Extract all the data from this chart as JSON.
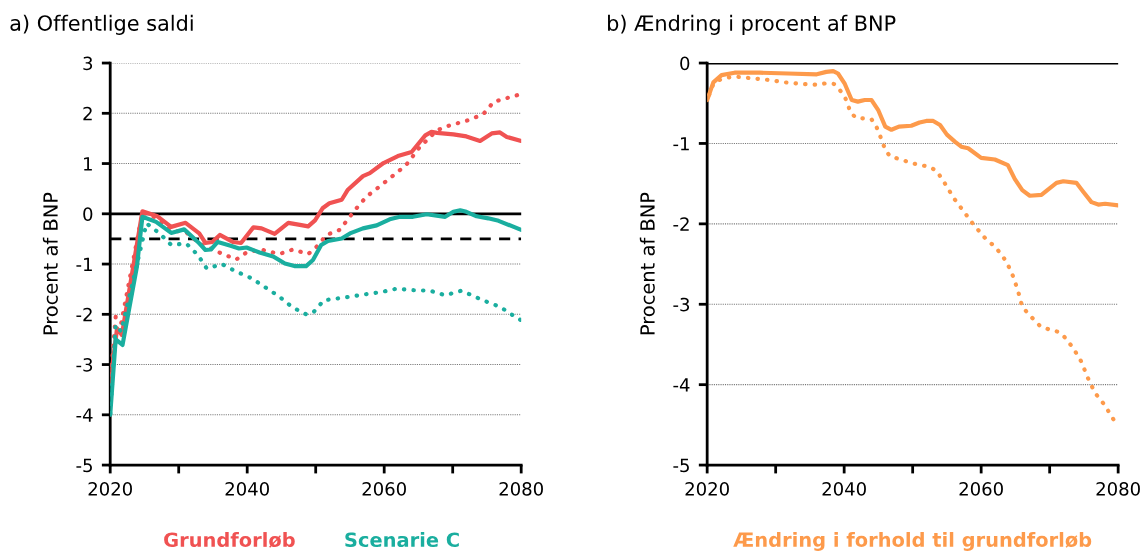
{
  "chart_data": [
    {
      "type": "line",
      "title": "a) Offentlige saldi",
      "ylabel": "Procent af BNP",
      "xlim": [
        2020,
        2080
      ],
      "ylim": [
        -5,
        3
      ],
      "xticks": [
        2020,
        {
          "value": 2030,
          "label": null
        },
        2040,
        {
          "value": 2050,
          "label": null
        },
        2060,
        {
          "value": 2070,
          "label": null
        },
        2080
      ],
      "yticks": [
        -5,
        -4,
        -3,
        -2,
        -1,
        0,
        1,
        2,
        3
      ],
      "grid": "y",
      "legend": "bottom",
      "ref_lines": [
        {
          "axis": "y",
          "value": 0,
          "color": "#000000",
          "line_style": "solid"
        },
        {
          "axis": "y",
          "value": -0.5,
          "color": "#000000",
          "line_style": "dashed"
        }
      ],
      "series": [
        {
          "name": "Grundforløb",
          "color": "#f05252",
          "line_style": "solid",
          "x": [
            2020,
            2021,
            2021.7,
            2024.7,
            2026.9,
            2028.9,
            2031,
            2033,
            2033.9,
            2034.9,
            2036,
            2037.9,
            2039.1,
            2040.9,
            2042.1,
            2044,
            2046,
            2047.7,
            2048.9,
            2049.9,
            2051,
            2052,
            2053.8,
            2054.7,
            2056.9,
            2057.9,
            2059.9,
            2062,
            2064,
            2066,
            2066.9,
            2067.7,
            2070.1,
            2072,
            2074,
            2075.7,
            2076.9,
            2077.9,
            2080
          ],
          "values": [
            -3.37,
            -2.28,
            -2.41,
            0.05,
            -0.05,
            -0.26,
            -0.18,
            -0.39,
            -0.58,
            -0.56,
            -0.42,
            -0.56,
            -0.58,
            -0.27,
            -0.29,
            -0.4,
            -0.18,
            -0.22,
            -0.25,
            -0.13,
            0.11,
            0.21,
            0.28,
            0.48,
            0.75,
            0.81,
            1.01,
            1.15,
            1.23,
            1.56,
            1.63,
            1.61,
            1.58,
            1.54,
            1.45,
            1.6,
            1.62,
            1.53,
            1.45
          ]
        },
        {
          "color": "#f05252",
          "line_style": "dotted",
          "x": [
            2020,
            2020.8,
            2021.6,
            2024.7,
            2026.9,
            2028.9,
            2031.2,
            2033,
            2035.4,
            2038.4,
            2040.1,
            2042.3,
            2044.7,
            2046.7,
            2048.9,
            2049.9,
            2051.6,
            2053.5,
            2055.7,
            2057.4,
            2059.3,
            2061.2,
            2063.2,
            2065.2,
            2067.7,
            2069.1,
            2072.5,
            2074.5,
            2076,
            2078.1,
            2079.4
          ],
          "values": [
            -3.37,
            -2.05,
            -2.18,
            0.03,
            -0.09,
            -0.32,
            -0.38,
            -0.59,
            -0.74,
            -0.91,
            -0.75,
            -0.72,
            -0.8,
            -0.71,
            -0.8,
            -0.69,
            -0.42,
            -0.32,
            0.07,
            0.34,
            0.54,
            0.75,
            0.97,
            1.33,
            1.66,
            1.74,
            1.87,
            1.99,
            2.23,
            2.31,
            2.36
          ]
        },
        {
          "name": "Scenarie C",
          "color": "#1aae9f",
          "line_style": "solid",
          "x": [
            2020,
            2020.8,
            2021.8,
            2023.9,
            2024.7,
            2026.7,
            2028.9,
            2030.8,
            2032.8,
            2033.9,
            2034.7,
            2035.7,
            2037.7,
            2038.8,
            2039.9,
            2041.8,
            2043.8,
            2045.5,
            2046.9,
            2048.6,
            2049.6,
            2050.8,
            2051.8,
            2053.8,
            2055,
            2056.9,
            2058.9,
            2060.8,
            2062.3,
            2064.2,
            2066.2,
            2068.9,
            2070.1,
            2071.1,
            2072,
            2073.5,
            2075.2,
            2076.7,
            2080
          ],
          "values": [
            -4.0,
            -2.5,
            -2.61,
            -1.05,
            -0.06,
            -0.16,
            -0.38,
            -0.31,
            -0.56,
            -0.72,
            -0.71,
            -0.56,
            -0.64,
            -0.69,
            -0.67,
            -0.77,
            -0.85,
            -0.99,
            -1.04,
            -1.04,
            -0.92,
            -0.62,
            -0.54,
            -0.49,
            -0.39,
            -0.29,
            -0.23,
            -0.11,
            -0.06,
            -0.06,
            -0.01,
            -0.06,
            0.04,
            0.07,
            0.04,
            -0.05,
            -0.09,
            -0.14,
            -0.32
          ]
        },
        {
          "color": "#1aae9f",
          "line_style": "dotted",
          "x": [
            2020,
            2020.8,
            2021.6,
            2025.3,
            2027.2,
            2028.9,
            2031.1,
            2032.8,
            2034.1,
            2036.3,
            2038.4,
            2040.6,
            2042.6,
            2044.7,
            2046.6,
            2048.6,
            2049.6,
            2051.2,
            2053.5,
            2055.9,
            2058.3,
            2059.5,
            2061.8,
            2064.2,
            2066.7,
            2068.9,
            2071.3,
            2073.4,
            2075.5,
            2076.9,
            2078.9,
            2079.9
          ],
          "values": [
            -4.0,
            -2.21,
            -2.34,
            -0.19,
            -0.39,
            -0.62,
            -0.59,
            -0.82,
            -1.09,
            -1.0,
            -1.15,
            -1.28,
            -1.46,
            -1.65,
            -1.86,
            -2.0,
            -1.97,
            -1.72,
            -1.68,
            -1.63,
            -1.58,
            -1.56,
            -1.49,
            -1.52,
            -1.53,
            -1.62,
            -1.53,
            -1.66,
            -1.78,
            -1.85,
            -2.03,
            -2.11
          ]
        }
      ]
    },
    {
      "type": "line",
      "title": "b) Ændring i procent af BNP",
      "ylabel": "Procent af BNP",
      "xlim": [
        2020,
        2080
      ],
      "ylim": [
        -5,
        0
      ],
      "xticks": [
        2020,
        {
          "value": 2030,
          "label": null
        },
        2040,
        {
          "value": 2050,
          "label": null
        },
        2060,
        {
          "value": 2070,
          "label": null
        },
        2080
      ],
      "yticks": [
        -5,
        -4,
        -3,
        -2,
        -1,
        0
      ],
      "grid": "y",
      "legend": "bottom",
      "ref_lines": [
        {
          "axis": "y",
          "value": 0,
          "color": "#000000",
          "line_style": "solid"
        }
      ],
      "series": [
        {
          "name": "Ændring i forhold til grundforløb",
          "color": "#fd9a4b",
          "line_style": "solid",
          "x": [
            2020,
            2020.9,
            2022.1,
            2024,
            2027.7,
            2031.8,
            2036,
            2037.4,
            2038.4,
            2039.1,
            2040.1,
            2041.1,
            2042,
            2043,
            2044,
            2045,
            2046,
            2046.9,
            2048,
            2049.8,
            2051,
            2052,
            2053,
            2054,
            2055,
            2056.2,
            2057.1,
            2058.1,
            2060,
            2062,
            2063.9,
            2064.9,
            2066,
            2067.1,
            2068.8,
            2069.8,
            2071,
            2072,
            2073.9,
            2074.9,
            2076.1,
            2077.1,
            2078.1,
            2080
          ],
          "values": [
            -0.46,
            -0.24,
            -0.15,
            -0.12,
            -0.12,
            -0.13,
            -0.14,
            -0.11,
            -0.1,
            -0.13,
            -0.26,
            -0.46,
            -0.48,
            -0.46,
            -0.46,
            -0.59,
            -0.79,
            -0.83,
            -0.79,
            -0.78,
            -0.74,
            -0.72,
            -0.72,
            -0.77,
            -0.89,
            -0.98,
            -1.04,
            -1.06,
            -1.18,
            -1.2,
            -1.27,
            -1.44,
            -1.58,
            -1.65,
            -1.64,
            -1.57,
            -1.49,
            -1.47,
            -1.49,
            -1.6,
            -1.73,
            -1.76,
            -1.75,
            -1.77
          ]
        },
        {
          "color": "#fd9a4b",
          "line_style": "dotted",
          "x": [
            2020,
            2020.9,
            2021.8,
            2023,
            2024.2,
            2026.5,
            2029,
            2031.3,
            2033.8,
            2036.2,
            2037.4,
            2038.5,
            2039.4,
            2040.1,
            2040.6,
            2040.9,
            2041.7,
            2042.9,
            2044,
            2044.7,
            2045.5,
            2046,
            2046.7,
            2047.9,
            2050.1,
            2052.4,
            2053.5,
            2054.8,
            2056,
            2057.5,
            2058.8,
            2060.5,
            2062.2,
            2063.7,
            2064.7,
            2065.4,
            2066,
            2067,
            2068.6,
            2069.8,
            2070.9,
            2072,
            2073.4,
            2074.6,
            2075.6,
            2076.6,
            2078,
            2079.3
          ],
          "values": [
            -0.46,
            -0.26,
            -0.21,
            -0.18,
            -0.17,
            -0.19,
            -0.21,
            -0.24,
            -0.26,
            -0.27,
            -0.25,
            -0.26,
            -0.34,
            -0.42,
            -0.53,
            -0.61,
            -0.68,
            -0.69,
            -0.7,
            -0.79,
            -0.96,
            -1.08,
            -1.16,
            -1.19,
            -1.25,
            -1.29,
            -1.34,
            -1.51,
            -1.68,
            -1.85,
            -2.0,
            -2.17,
            -2.3,
            -2.47,
            -2.66,
            -2.84,
            -3.03,
            -3.13,
            -3.27,
            -3.31,
            -3.33,
            -3.39,
            -3.54,
            -3.71,
            -3.92,
            -4.1,
            -4.25,
            -4.43
          ]
        }
      ]
    }
  ]
}
